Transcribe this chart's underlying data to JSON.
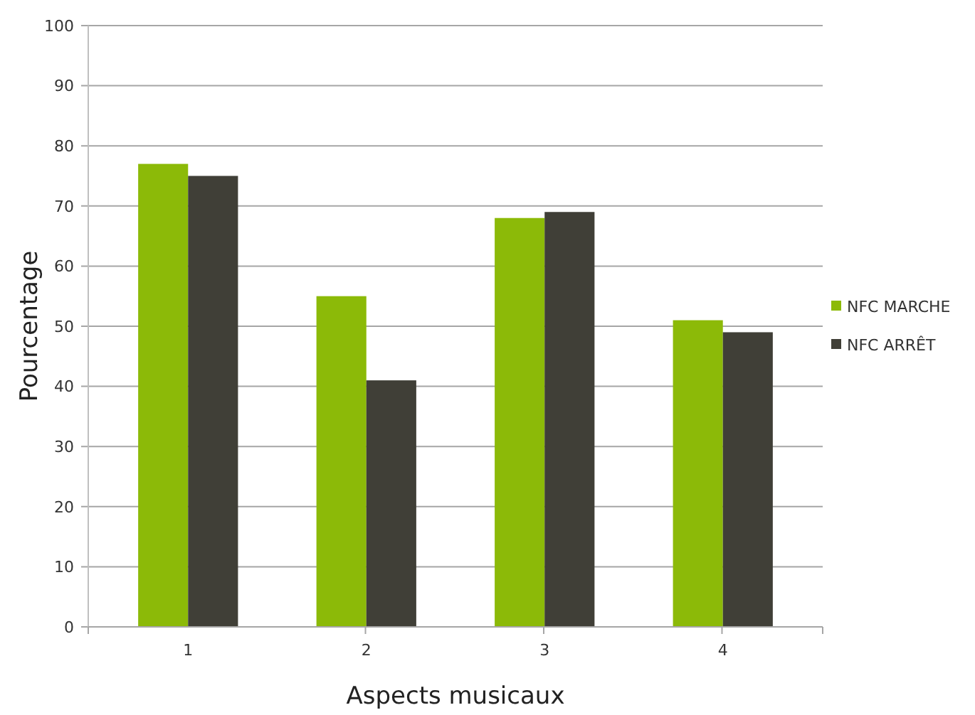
{
  "chart_data": {
    "type": "bar",
    "xlabel": "Aspects musicaux",
    "ylabel": "Pourcentage",
    "categories": [
      "1",
      "2",
      "3",
      "4"
    ],
    "series": [
      {
        "name": "NFC MARCHE",
        "color": "#8cba08",
        "values": [
          77,
          55,
          68,
          51
        ]
      },
      {
        "name": "NFC ARRÊT",
        "color": "#403f37",
        "values": [
          75,
          41,
          69,
          49
        ]
      }
    ],
    "ylim": [
      0,
      100
    ],
    "yticks": [
      0,
      10,
      20,
      30,
      40,
      50,
      60,
      70,
      80,
      90,
      100
    ],
    "grid": "y",
    "legend": "right"
  }
}
